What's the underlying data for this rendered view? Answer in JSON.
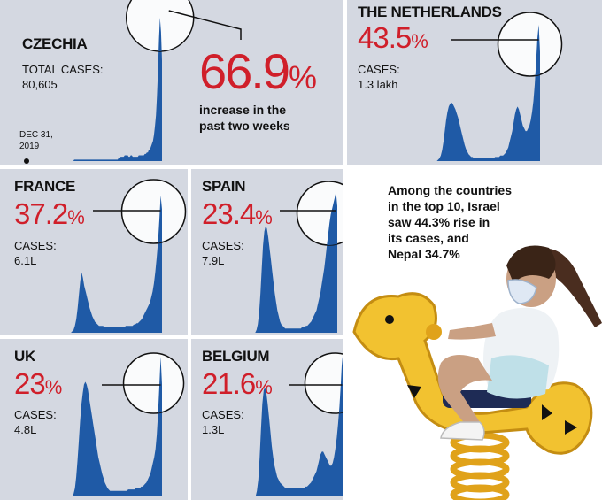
{
  "chart_data": [
    {
      "type": "area",
      "country": "CZECHIA",
      "percent_value": "66.9",
      "percent_sign": "%",
      "cases_label": "TOTAL CASES:",
      "cases_value": "80,605",
      "increase_text_line1": "increase in the",
      "increase_text_line2": "past two weeks",
      "start_date_line1": "DEC 31,",
      "start_date_line2": "2019",
      "color": "#1f5aa6",
      "values": [
        0,
        0,
        0,
        0,
        0,
        0,
        0,
        0,
        0,
        0,
        0,
        0,
        0,
        0,
        1,
        1,
        1,
        1,
        1,
        1,
        1,
        1,
        1,
        1,
        1,
        1,
        1,
        1,
        1,
        1,
        1,
        1,
        1,
        1,
        1,
        1,
        1,
        1,
        1,
        1,
        1,
        1,
        1,
        1,
        1,
        1,
        1,
        1,
        1,
        1,
        1,
        1,
        1,
        1,
        1,
        1,
        1,
        1,
        2,
        2,
        3,
        3,
        3,
        3,
        4,
        4,
        4,
        4,
        3,
        3,
        4,
        4,
        3,
        3,
        3,
        3,
        3,
        3,
        4,
        4,
        4,
        4,
        4,
        4,
        5,
        5,
        6,
        6,
        8,
        8,
        10,
        12,
        14,
        18,
        24,
        32,
        45,
        62,
        85,
        100,
        90,
        70
      ]
    },
    {
      "type": "area",
      "country": "THE NETHERLANDS",
      "percent_value": "43.5",
      "percent_sign": "%",
      "cases_label": "CASES:",
      "cases_value": "1.3 lakh",
      "color": "#1f5aa6",
      "values": [
        0,
        0,
        0,
        0,
        0,
        0,
        0,
        0,
        0,
        0,
        1,
        2,
        4,
        8,
        14,
        22,
        30,
        36,
        40,
        42,
        43,
        42,
        40,
        38,
        35,
        32,
        28,
        24,
        20,
        16,
        12,
        9,
        7,
        5,
        4,
        3,
        3,
        2,
        2,
        2,
        2,
        2,
        2,
        2,
        2,
        2,
        2,
        2,
        2,
        2,
        2,
        2,
        2,
        3,
        3,
        3,
        3,
        4,
        4,
        4,
        5,
        6,
        8,
        10,
        14,
        18,
        22,
        28,
        34,
        38,
        40,
        38,
        34,
        30,
        26,
        24,
        22,
        22,
        24,
        26,
        30,
        36,
        44,
        56,
        72,
        90,
        100,
        80
      ]
    },
    {
      "type": "area",
      "country": "FRANCE",
      "percent_value": "37.2",
      "percent_sign": "%",
      "cases_label": "CASES:",
      "cases_value": "6.1L",
      "color": "#1f5aa6",
      "values": [
        0,
        0,
        0,
        0,
        0,
        0,
        0,
        0,
        0,
        1,
        2,
        5,
        10,
        18,
        28,
        38,
        44,
        40,
        34,
        30,
        26,
        22,
        18,
        15,
        12,
        10,
        8,
        7,
        6,
        5,
        5,
        5,
        5,
        4,
        4,
        4,
        4,
        4,
        4,
        4,
        4,
        4,
        4,
        4,
        4,
        4,
        4,
        4,
        4,
        5,
        5,
        5,
        5,
        5,
        5,
        6,
        6,
        7,
        7,
        8,
        9,
        10,
        12,
        14,
        16,
        18,
        20,
        22,
        26,
        30,
        36,
        44,
        54,
        66,
        82,
        100,
        90
      ]
    },
    {
      "type": "area",
      "country": "SPAIN",
      "percent_value": "23.4",
      "percent_sign": "%",
      "cases_label": "CASES:",
      "cases_value": "7.9L",
      "color": "#1f5aa6",
      "values": [
        0,
        0,
        0,
        0,
        0,
        0,
        0,
        0,
        2,
        6,
        14,
        28,
        46,
        62,
        72,
        76,
        74,
        68,
        60,
        52,
        44,
        36,
        28,
        22,
        16,
        12,
        8,
        6,
        5,
        4,
        3,
        3,
        3,
        3,
        3,
        3,
        3,
        3,
        3,
        3,
        3,
        3,
        3,
        4,
        4,
        4,
        5,
        5,
        6,
        7,
        8,
        10,
        12,
        14,
        16,
        20,
        24,
        28,
        34,
        40,
        46,
        54,
        62,
        70,
        78,
        84,
        88,
        92,
        96,
        100,
        90
      ]
    },
    {
      "type": "area",
      "country": "UK",
      "percent_value": "23",
      "percent_sign": "%",
      "cases_label": "CASES:",
      "cases_value": "4.8L",
      "color": "#1f5aa6",
      "values": [
        0,
        0,
        0,
        0,
        0,
        0,
        0,
        0,
        0,
        2,
        6,
        14,
        26,
        40,
        54,
        66,
        74,
        80,
        82,
        80,
        76,
        70,
        64,
        58,
        52,
        46,
        40,
        34,
        28,
        24,
        20,
        16,
        13,
        10,
        8,
        6,
        5,
        4,
        4,
        4,
        4,
        4,
        4,
        4,
        4,
        4,
        4,
        4,
        4,
        4,
        4,
        5,
        5,
        5,
        5,
        5,
        5,
        6,
        6,
        6,
        6,
        7,
        7,
        8,
        9,
        10,
        12,
        14,
        16,
        20,
        24,
        28,
        34,
        44,
        60,
        80,
        100,
        80
      ]
    },
    {
      "type": "area",
      "country": "BELGIUM",
      "percent_value": "21.6",
      "percent_sign": "%",
      "cases_label": "CASES:",
      "cases_value": "1.3L",
      "color": "#1f5aa6",
      "values": [
        0,
        0,
        0,
        0,
        0,
        0,
        0,
        0,
        4,
        12,
        28,
        48,
        66,
        76,
        78,
        74,
        66,
        56,
        46,
        36,
        28,
        22,
        18,
        14,
        12,
        10,
        9,
        8,
        7,
        6,
        6,
        6,
        6,
        6,
        6,
        6,
        6,
        6,
        6,
        6,
        6,
        6,
        6,
        6,
        7,
        7,
        8,
        9,
        10,
        12,
        14,
        16,
        18,
        22,
        26,
        30,
        32,
        32,
        30,
        28,
        26,
        24,
        22,
        22,
        24,
        28,
        34,
        42,
        52,
        64,
        80,
        100,
        80
      ]
    }
  ],
  "note": {
    "lines": [
      "Among the countries",
      "in the top 10, Israel",
      "saw 44.3% rise in",
      "its cases, and",
      "Nepal 34.7%"
    ]
  },
  "colors": {
    "panel_bg": "#d4d8e1",
    "area": "#1f5aa6",
    "highlight": "#d01f2a",
    "toy_yellow": "#f2c230"
  }
}
